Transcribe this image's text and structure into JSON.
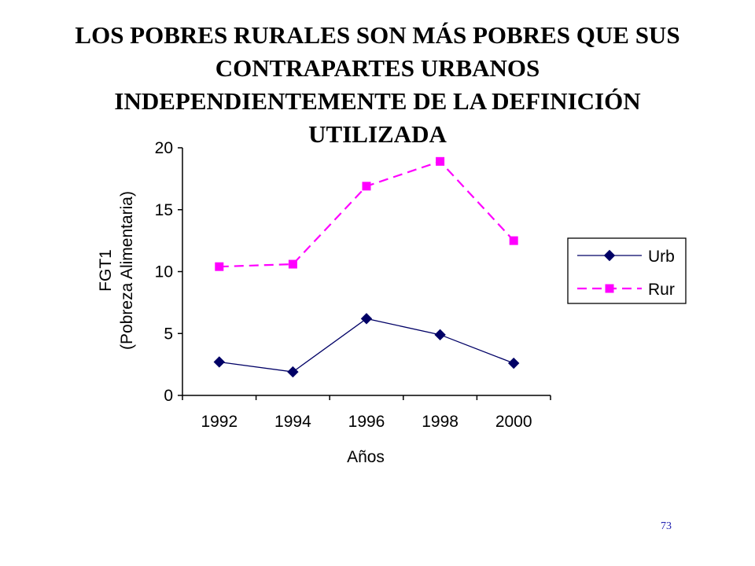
{
  "slide": {
    "title_lines": [
      "LOS POBRES RURALES SON MÁS POBRES QUE SUS",
      "CONTRAPARTES URBANOS",
      "INDEPENDIENTEMENTE DE LA DEFINICIÓN",
      "UTILIZADA"
    ],
    "page_number": "73"
  },
  "chart_data": {
    "type": "line",
    "categories": [
      "1992",
      "1994",
      "1996",
      "1998",
      "2000"
    ],
    "series": [
      {
        "name": "Urb",
        "values": [
          2.7,
          1.9,
          6.2,
          4.9,
          2.6
        ],
        "color": "#000066",
        "marker": "diamond",
        "line_style": "solid"
      },
      {
        "name": "Rur",
        "values": [
          10.4,
          10.6,
          16.9,
          18.9,
          12.5
        ],
        "color": "#ff00ff",
        "marker": "square",
        "line_style": "dashed"
      }
    ],
    "xlabel": "Años",
    "ylabel_lines": [
      "FGT1",
      "(Pobreza Alimentaria)"
    ],
    "ylim": [
      0,
      20
    ],
    "yticks": [
      "0",
      "5",
      "10",
      "15",
      "20"
    ],
    "grid": false,
    "legend_position": "right"
  }
}
